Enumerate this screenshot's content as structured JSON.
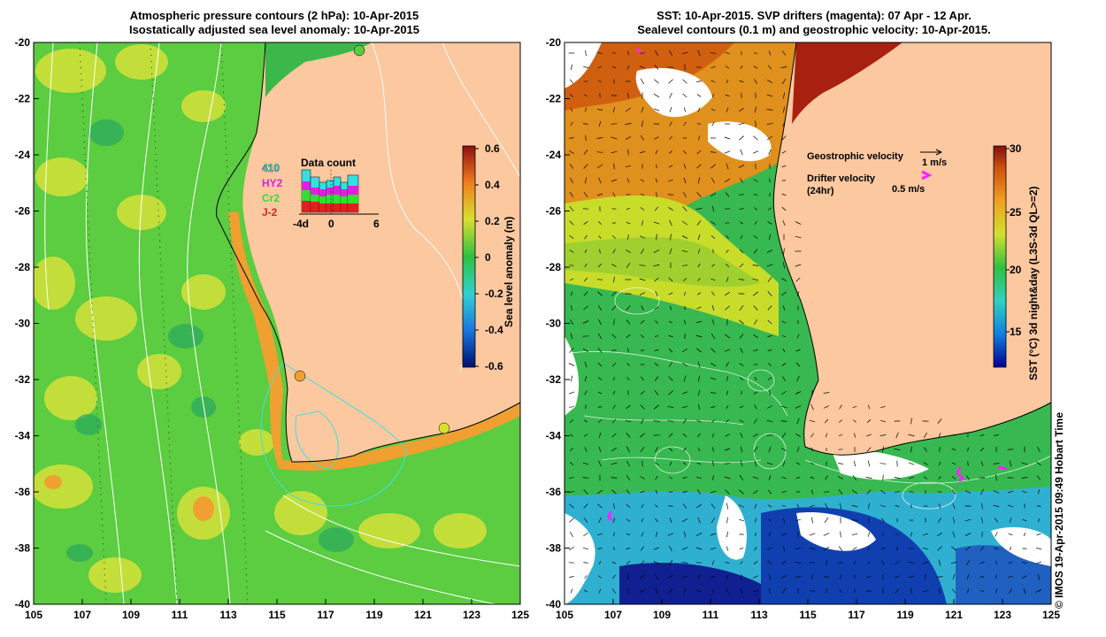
{
  "left_panel": {
    "title_line1": "Atmospheric pressure contours (2 hPa): 10-Apr-2015",
    "title_line2": "Isostatically adjusted sea level anomaly: 10-Apr-2015",
    "colorbar_label": "Sea level anomaly (m)",
    "colorbar_ticks": [
      "0.6",
      "0.4",
      "0.2",
      "0",
      "-0.2",
      "-0.4",
      "-0.6"
    ],
    "data_count": {
      "title": "Data count",
      "legend": [
        {
          "label": "410",
          "color": "#33e0e0"
        },
        {
          "label": "HY2",
          "color": "#e020e0"
        },
        {
          "label": "Cr2",
          "color": "#30e030"
        },
        {
          "label": "J-2",
          "color": "#e02020"
        }
      ],
      "axis_labels": [
        "-4d",
        "0",
        "6"
      ]
    }
  },
  "right_panel": {
    "title_line1": "SST: 10-Apr-2015. SVP drifters (magenta): 07 Apr - 12 Apr.",
    "title_line2": "Sealevel contours (0.1 m) and geostrophic velocity: 10-Apr-2015.",
    "colorbar_label": "SST (°C) 3d night&day (L3S-3d QL>=2)",
    "colorbar_ticks": [
      "30",
      "25",
      "20",
      "15"
    ],
    "geostrophic_label": "Geostrophic velocity",
    "geostrophic_scale": "1 m/s",
    "drifter_label": "Drifter velocity",
    "drifter_sub": "(24hr)",
    "drifter_scale": "0.5 m/s"
  },
  "axes": {
    "lat_ticks": [
      "-20",
      "-22",
      "-24",
      "-26",
      "-28",
      "-30",
      "-32",
      "-34",
      "-36",
      "-38",
      "-40"
    ],
    "lon_ticks": [
      "105",
      "107",
      "109",
      "111",
      "113",
      "115",
      "117",
      "119",
      "121",
      "123",
      "125"
    ]
  },
  "copyright": "© IMOS 19-Apr-2015 09:49 Hobart Time",
  "colors": {
    "land": "#fbc8a0",
    "ocean_green": "#5ccc40",
    "ocean_yellow": "#cfe03a",
    "sst_orange": "#e08020"
  }
}
